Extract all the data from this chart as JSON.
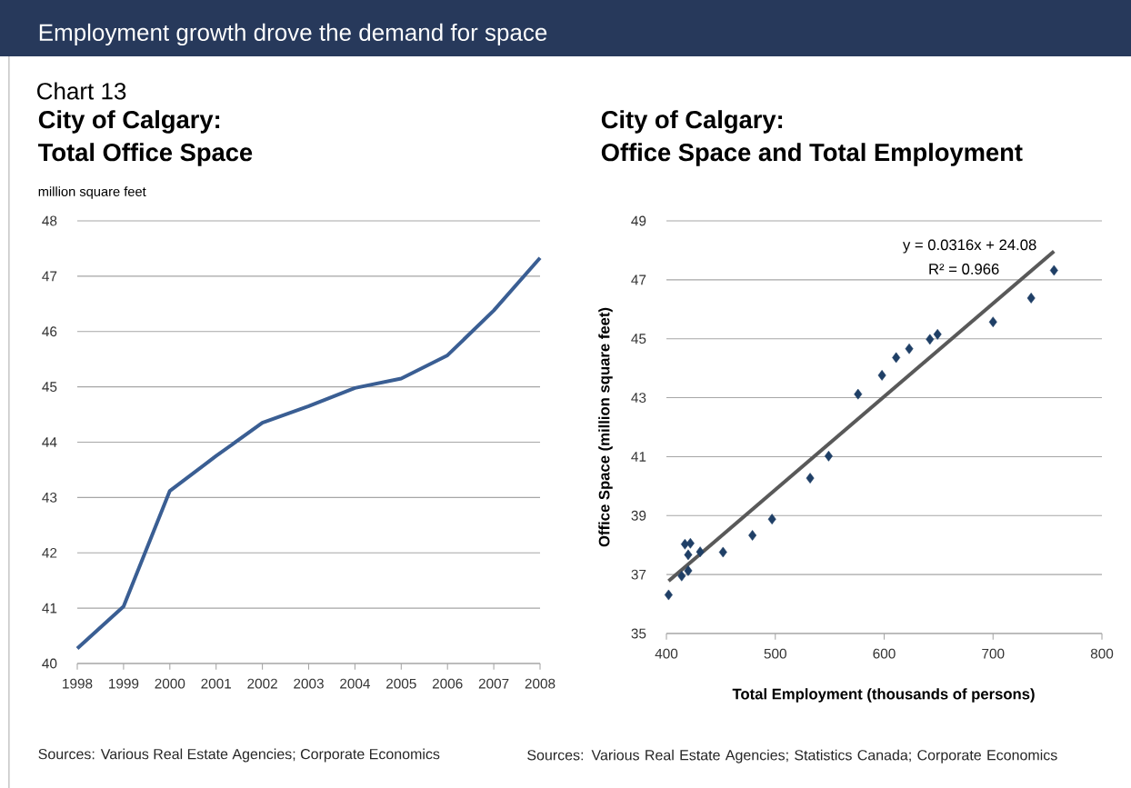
{
  "chart_data": [
    {
      "type": "line",
      "title": "City of Calgary:",
      "subtitle": "Total Office Space",
      "ylabel": "million square feet",
      "annotations": [
        "Employment growth drove the demand for space",
        "Chart 13",
        "Sources: Various Real Estate Agencies; Corporate Economics"
      ],
      "categories": [
        "1998",
        "1999",
        "2000",
        "2001",
        "2002",
        "2003",
        "2004",
        "2005",
        "2006",
        "2007",
        "2008"
      ],
      "series": [
        {
          "color": "#3a5e93",
          "values": [
            40.27,
            41.03,
            43.12,
            43.75,
            44.35,
            44.65,
            44.98,
            45.15,
            45.57,
            46.38,
            47.33
          ]
        }
      ],
      "ylim": [
        40,
        48
      ],
      "yticks": [
        40,
        41,
        42,
        43,
        44,
        45,
        46,
        47,
        48
      ],
      "grid": "y",
      "marker": "none",
      "line_style": "solid"
    },
    {
      "type": "scatter",
      "title": "City of Calgary:",
      "subtitle": "Office Space and Total Employment",
      "xlabel": "Total Employment (thousands of persons)",
      "ylabel": "Office Space (million square feet)",
      "annotations": [
        "y = 0.0316x + 24.08",
        "R² = 0.966",
        "Sources: Various Real Estate Agencies; Statistics Canada; Corporate Economics"
      ],
      "series": [
        {
          "type": "scatter",
          "marker": "diamond",
          "color": "#1f3f66",
          "x": [
            402,
            414,
            420,
            417,
            422,
            420,
            431,
            452,
            479,
            497,
            532,
            549,
            576,
            598,
            611,
            623,
            642,
            649,
            700,
            735,
            756
          ],
          "values": [
            36.31,
            36.95,
            37.13,
            38.03,
            38.06,
            37.67,
            37.77,
            37.76,
            38.33,
            38.88,
            40.27,
            41.02,
            43.12,
            43.76,
            44.36,
            44.66,
            44.98,
            45.15,
            45.57,
            46.38,
            47.32
          ]
        },
        {
          "type": "line",
          "marker": "none",
          "color": "#595959",
          "x": [
            402,
            756
          ],
          "values": [
            36.78,
            47.97
          ]
        }
      ],
      "xlim": [
        400,
        800
      ],
      "xticks": [
        400,
        500,
        600,
        700,
        800
      ],
      "ylim": [
        35,
        49
      ],
      "yticks": [
        35,
        37,
        39,
        41,
        43,
        45,
        47,
        49
      ],
      "grid": "y"
    }
  ]
}
